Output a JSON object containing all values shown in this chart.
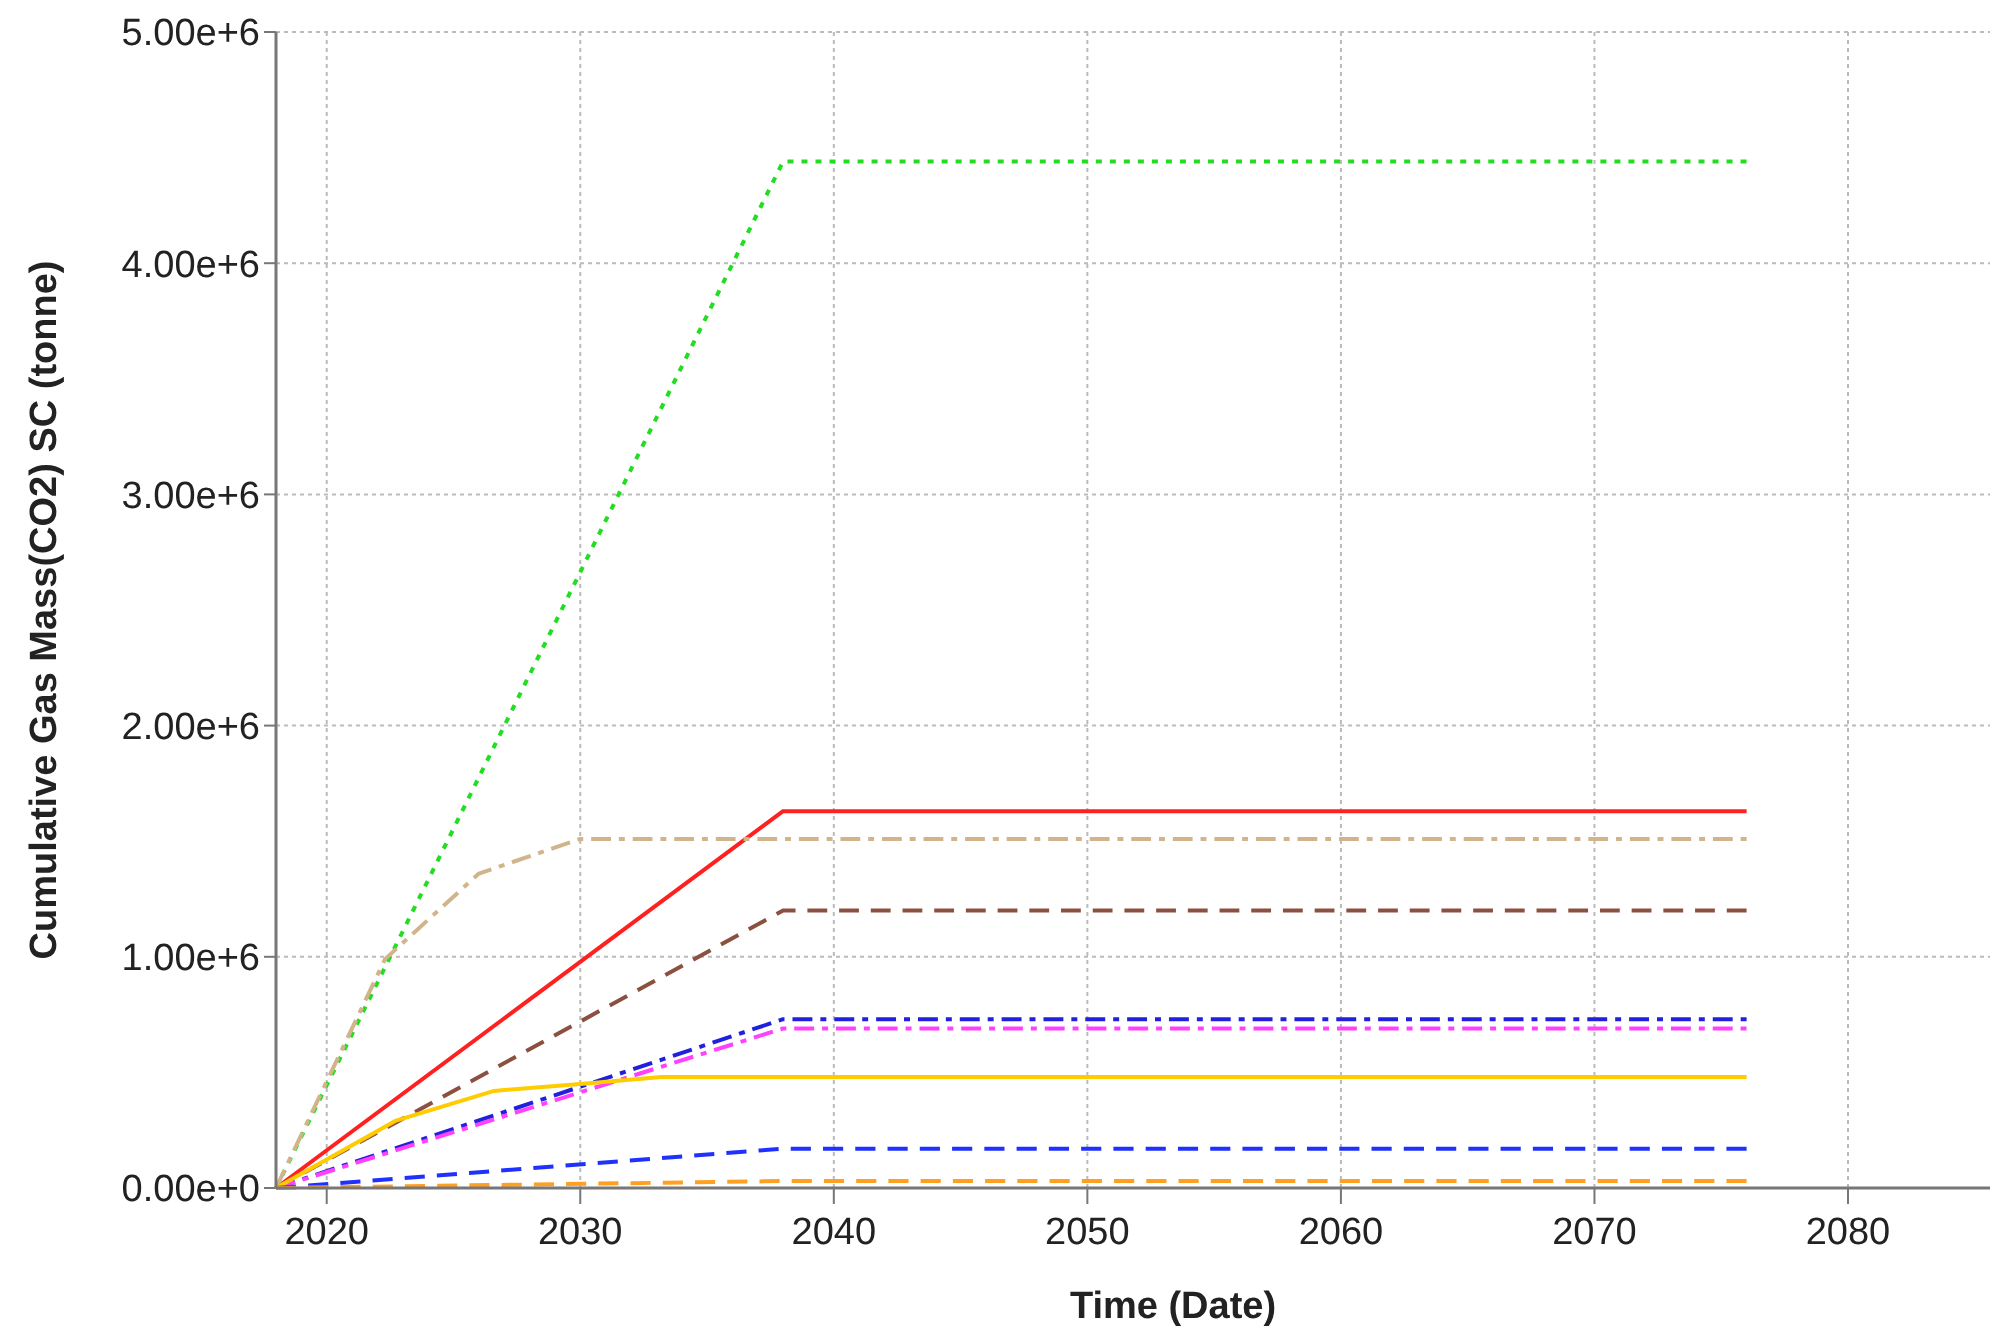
{
  "chart_data": {
    "type": "line",
    "xlabel": "Time (Date)",
    "ylabel": "Cumulative Gas Mass(CO2) SC (tonne)",
    "xlim": [
      2018,
      2085.6
    ],
    "xticks": [
      2020,
      2030,
      2040,
      2050,
      2060,
      2070,
      2080
    ],
    "ylim": [
      0,
      5000000
    ],
    "yticks": [
      {
        "value": 0,
        "label": "0.00e+0"
      },
      {
        "value": 1000000,
        "label": "1.00e+6"
      },
      {
        "value": 2000000,
        "label": "2.00e+6"
      },
      {
        "value": 3000000,
        "label": "3.00e+6"
      },
      {
        "value": 4000000,
        "label": "4.00e+6"
      },
      {
        "value": 5000000,
        "label": "5.00e+6"
      }
    ],
    "grid": true,
    "marker": "none",
    "series": [
      {
        "color": "#22dd22",
        "line_style": "dotted",
        "x": [
          2018,
          2038,
          2076
        ],
        "values": [
          0,
          4440000,
          4440000
        ]
      },
      {
        "color": "#ff2020",
        "line_style": "solid",
        "x": [
          2018,
          2038,
          2076
        ],
        "values": [
          0,
          1630000,
          1630000
        ]
      },
      {
        "color": "#d2b48c",
        "line_style": "dashdot",
        "x": [
          2018,
          2022.3,
          2026,
          2030,
          2033,
          2076
        ],
        "values": [
          0,
          990000,
          1360000,
          1510000,
          1510000,
          1510000
        ]
      },
      {
        "color": "#8b5040",
        "line_style": "dashed",
        "x": [
          2018,
          2038,
          2076
        ],
        "values": [
          0,
          1200000,
          1200000
        ]
      },
      {
        "color": "#2020dd",
        "line_style": "dashdot",
        "x": [
          2018,
          2038,
          2076
        ],
        "values": [
          0,
          730000,
          730000
        ]
      },
      {
        "color": "#ff40ff",
        "line_style": "dashdot",
        "x": [
          2018,
          2038,
          2076
        ],
        "values": [
          0,
          690000,
          690000
        ]
      },
      {
        "color": "#ffcc00",
        "line_style": "solid",
        "x": [
          2018,
          2022.7,
          2026.6,
          2030,
          2033.2,
          2076
        ],
        "values": [
          0,
          290000,
          420000,
          450000,
          480000,
          480000
        ]
      },
      {
        "color": "#2030ff",
        "line_style": "dashed",
        "x": [
          2018,
          2038,
          2076
        ],
        "values": [
          0,
          170000,
          170000
        ]
      },
      {
        "color": "#ffa020",
        "line_style": "dashed",
        "x": [
          2018,
          2038,
          2076
        ],
        "values": [
          0,
          30000,
          30000
        ]
      }
    ]
  }
}
